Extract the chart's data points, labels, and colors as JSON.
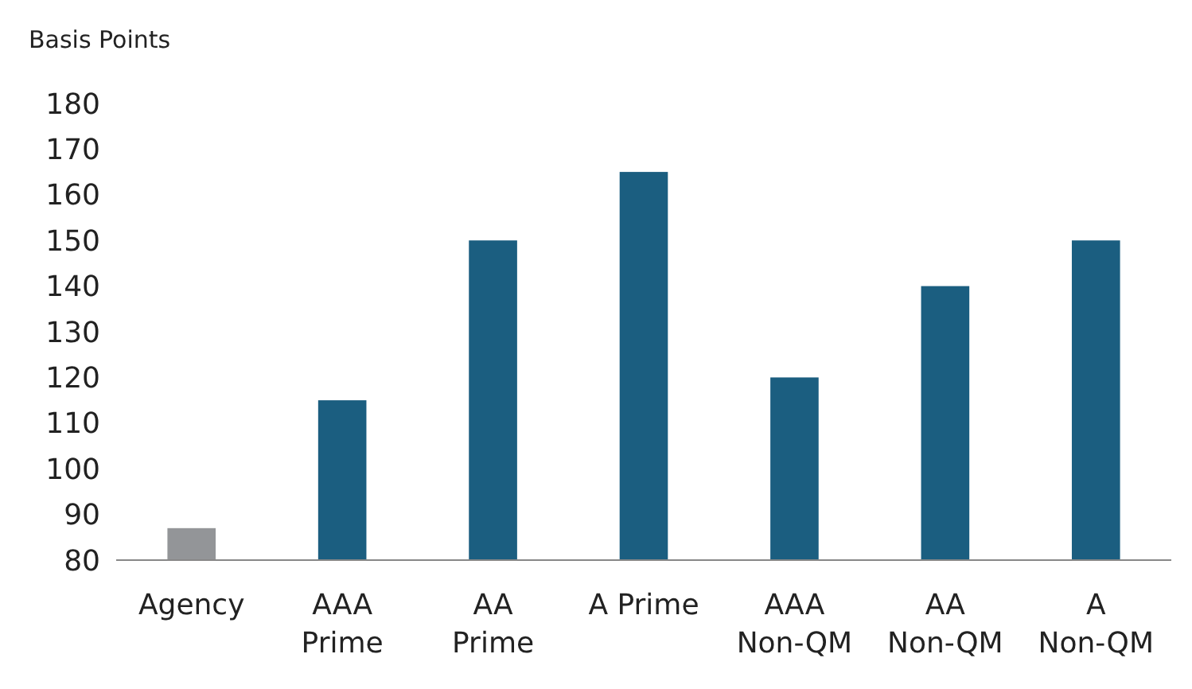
{
  "chart_data": {
    "type": "bar",
    "ylabel": "Basis Points",
    "categories": [
      "Agency",
      "AAA Prime",
      "AA Prime",
      "A Prime",
      "AAA Non-QM",
      "AA Non-QM",
      "A Non-QM"
    ],
    "values": [
      87,
      115,
      150,
      165,
      120,
      140,
      150
    ],
    "colors": [
      "#939598",
      "#1b5e80",
      "#1b5e80",
      "#1b5e80",
      "#1b5e80",
      "#1b5e80",
      "#1b5e80"
    ],
    "ylim": [
      80,
      180
    ],
    "yticks": [
      80,
      90,
      100,
      110,
      120,
      130,
      140,
      150,
      160,
      170,
      180
    ],
    "grid": false
  }
}
